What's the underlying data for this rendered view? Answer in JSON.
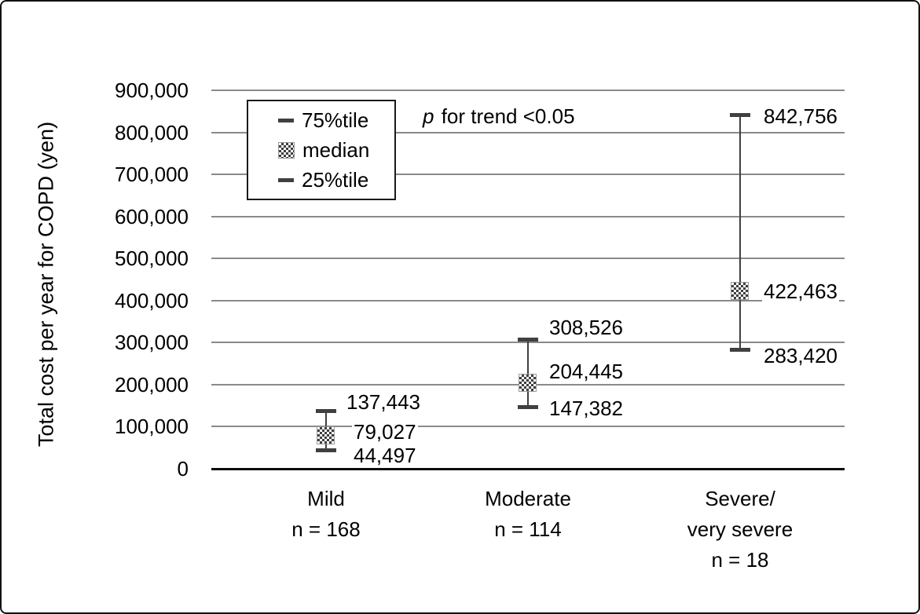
{
  "chart_data": {
    "type": "scatter",
    "subtype": "median-with-25-75-percentile-error-bars",
    "title": "",
    "xlabel": "",
    "ylabel": "Total cost per year for COPD (yen)",
    "ylim": [
      0,
      900000
    ],
    "ytick_values": [
      0,
      100000,
      200000,
      300000,
      400000,
      500000,
      600000,
      700000,
      800000,
      900000
    ],
    "ytick_labels": [
      "0",
      "100,000",
      "200,000",
      "300,000",
      "400,000",
      "500,000",
      "600,000",
      "700,000",
      "800,000",
      "900,000"
    ],
    "grid": true,
    "legend_position": "inside-top-left",
    "annotation": {
      "italic_lead": "p",
      "text": " for trend <0.05"
    },
    "legend": [
      {
        "marker": "dash-icon",
        "label": "75%tile"
      },
      {
        "marker": "checker-icon",
        "label": "median"
      },
      {
        "marker": "dash-icon",
        "label": "25%tile"
      }
    ],
    "categories": [
      {
        "lines": [
          "Mild",
          "n = 168"
        ]
      },
      {
        "lines": [
          "Moderate",
          "n = 114"
        ]
      },
      {
        "lines": [
          "Severe/",
          "very severe",
          "n = 18"
        ]
      }
    ],
    "series": [
      {
        "name": "75%tile",
        "values": [
          137443,
          308526,
          842756
        ],
        "labels": [
          "137,443",
          "308,526",
          "842,756"
        ]
      },
      {
        "name": "median",
        "values": [
          79027,
          204445,
          422463
        ],
        "labels": [
          "79,027",
          "204,445",
          "422,463"
        ]
      },
      {
        "name": "25%tile",
        "values": [
          44497,
          147382,
          283420
        ],
        "labels": [
          "44,497",
          "147,382",
          "283,420"
        ]
      }
    ],
    "colors": {
      "errorbar": "#404040",
      "gridline": "#8a8a8a",
      "axis": "#0a0a0a",
      "text": "#000000"
    }
  }
}
